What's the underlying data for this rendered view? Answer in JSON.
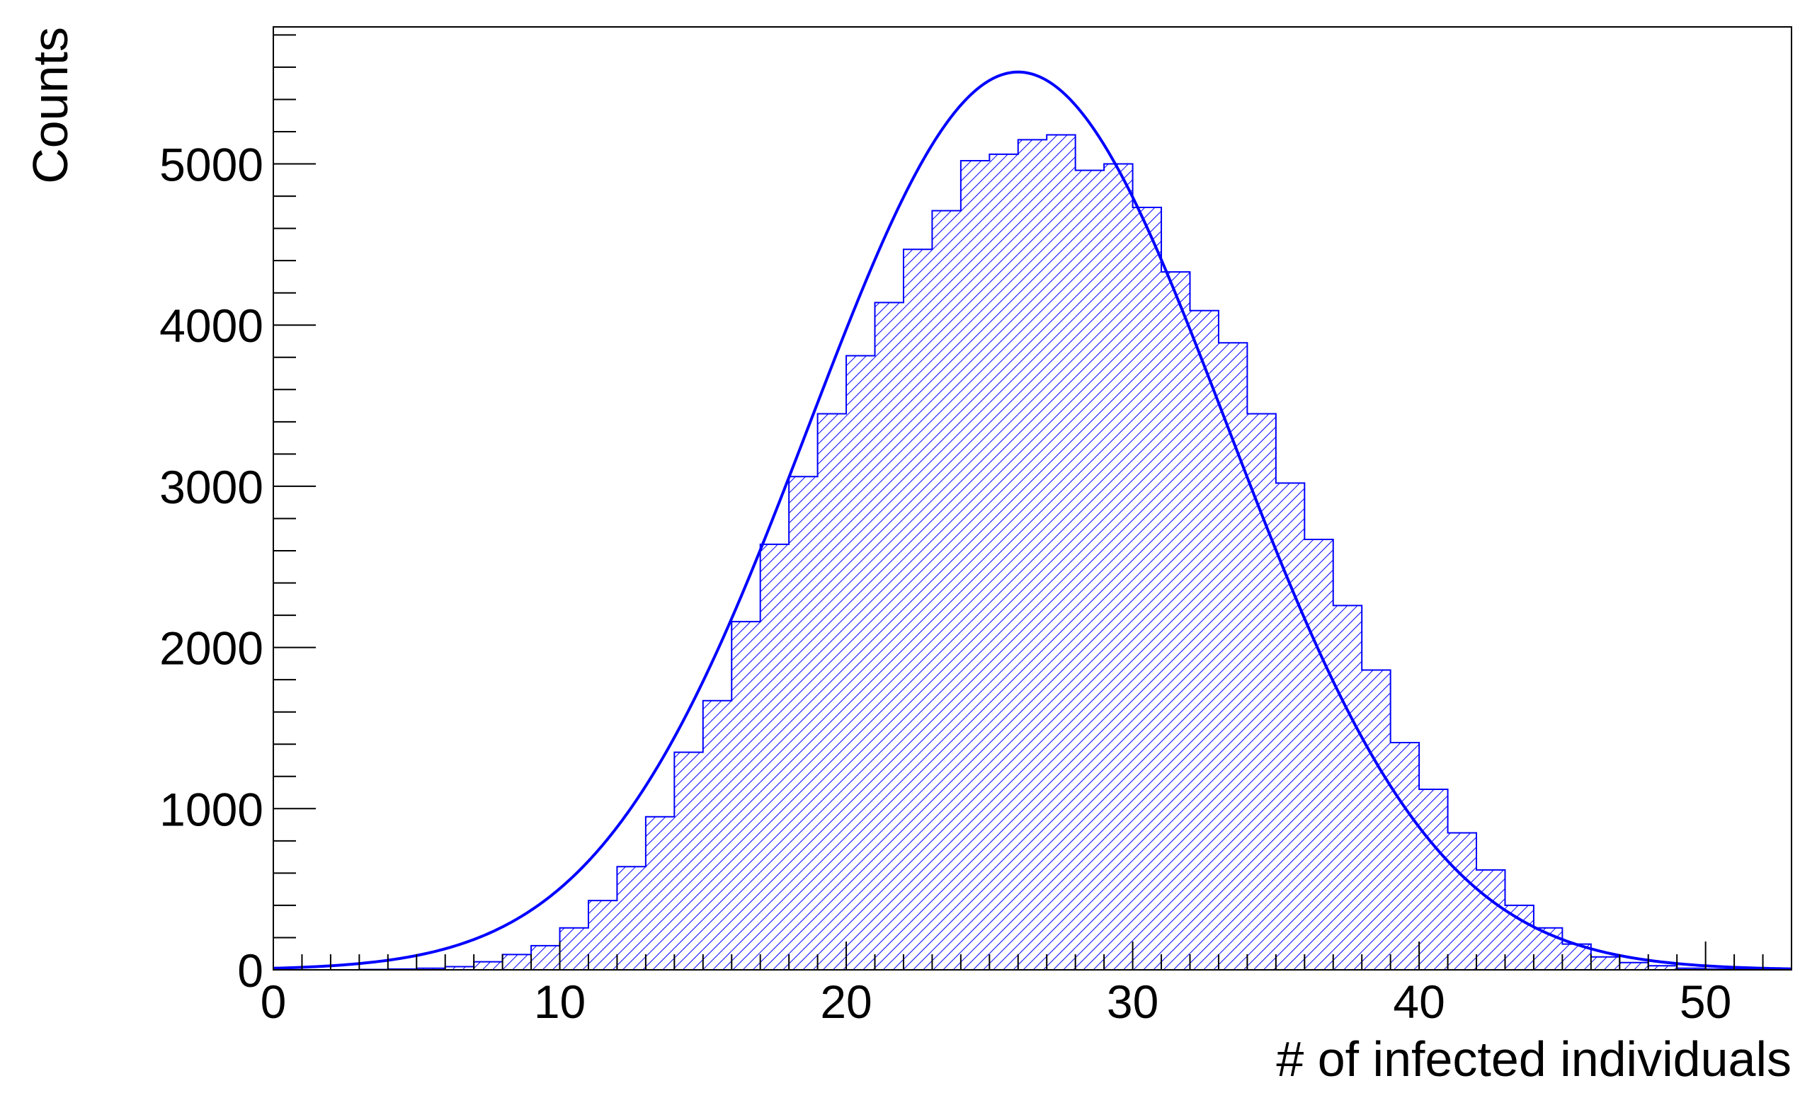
{
  "chart_data": {
    "type": "bar",
    "title": "",
    "xlabel": "# of infected individuals",
    "ylabel": "Counts",
    "xlim": [
      0,
      53
    ],
    "ylim": [
      0,
      5850
    ],
    "xticks": [
      0,
      10,
      20,
      30,
      40,
      50
    ],
    "xtick_labels": [
      "0",
      "10",
      "20",
      "30",
      "40",
      "50"
    ],
    "yticks": [
      0,
      1000,
      2000,
      3000,
      4000,
      5000
    ],
    "ytick_labels": [
      "0",
      "1000",
      "2000",
      "3000",
      "4000",
      "5000"
    ],
    "grid": false,
    "legend": "none",
    "bin_width": 1,
    "bin_edges_start": 0,
    "counts": [
      0,
      0,
      0,
      2,
      5,
      10,
      20,
      50,
      95,
      150,
      260,
      430,
      640,
      950,
      1350,
      1670,
      2160,
      2640,
      3060,
      3450,
      3810,
      4140,
      4470,
      4710,
      5020,
      5060,
      5150,
      5180,
      4960,
      5000,
      4730,
      4330,
      4090,
      3890,
      3450,
      3020,
      2670,
      2260,
      1860,
      1410,
      1120,
      850,
      620,
      400,
      260,
      160,
      80,
      45,
      25,
      10,
      5,
      2,
      1
    ],
    "fit_curve": {
      "type": "gaussian",
      "constant": 5570,
      "mean": 26.0,
      "sigma": 7.3
    },
    "colors": {
      "histogram": "#0000ff",
      "fit": "#0000ff",
      "axis": "#000000"
    }
  }
}
